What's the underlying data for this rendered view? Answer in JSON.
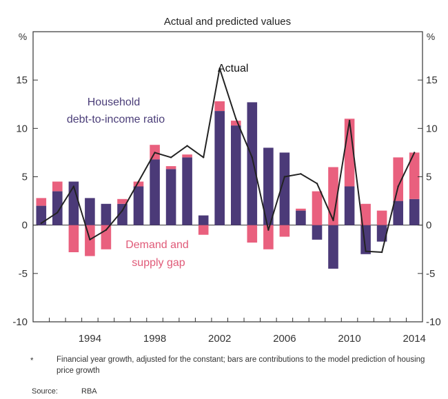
{
  "chart_data": {
    "type": "bar",
    "title": "Actual and predicted values",
    "unit_left": "%",
    "unit_right": "%",
    "ylim": [
      -10,
      20
    ],
    "yticks": [
      -10,
      -5,
      0,
      5,
      10,
      15
    ],
    "xlim": [
      1991,
      2014
    ],
    "xticks": [
      1994,
      1998,
      2002,
      2006,
      2010,
      2014
    ],
    "years": [
      1991,
      1992,
      1993,
      1994,
      1995,
      1996,
      1997,
      1998,
      1999,
      2000,
      2001,
      2002,
      2003,
      2004,
      2005,
      2006,
      2007,
      2008,
      2009,
      2010,
      2011,
      2012,
      2013,
      2014
    ],
    "stacked": true,
    "grid": false,
    "series": [
      {
        "name": "Household debt-to-income ratio",
        "color": "#4b3a78",
        "values": [
          2.0,
          3.5,
          4.5,
          2.8,
          2.2,
          2.2,
          4.0,
          6.8,
          5.8,
          7.0,
          1.0,
          11.8,
          10.3,
          12.7,
          8.0,
          7.5,
          1.5,
          -1.5,
          -4.5,
          4.0,
          -3.0,
          -1.7,
          2.5,
          2.7
        ]
      },
      {
        "name": "Demand and supply gap",
        "color": "#e9607e",
        "values": [
          0.8,
          1.0,
          -2.8,
          -3.2,
          -2.5,
          0.5,
          0.5,
          1.5,
          0.3,
          0.3,
          -1.0,
          1.0,
          0.5,
          -1.8,
          -2.5,
          -1.2,
          0.2,
          3.5,
          6.0,
          7.0,
          2.2,
          1.5,
          4.5,
          4.8
        ]
      }
    ],
    "actual": {
      "name": "Actual",
      "color": "#222222",
      "values": [
        0.2,
        1.3,
        4.0,
        -1.5,
        -0.5,
        1.5,
        4.5,
        7.5,
        7.0,
        8.2,
        7.0,
        16.2,
        11.0,
        7.0,
        -0.5,
        5.0,
        5.3,
        4.3,
        0.5,
        10.8,
        -2.7,
        -2.8,
        4.0,
        7.5
      ]
    },
    "annotations": {
      "actual": "Actual",
      "household_line1": "Household",
      "household_line2": "debt-to-income ratio",
      "gap_line1": "Demand and",
      "gap_line2": "supply gap"
    }
  },
  "footnote": {
    "marker": "*",
    "text": "Financial year growth, adjusted for the constant; bars are contributions to the model prediction of housing price growth"
  },
  "source": {
    "label": "Source:",
    "value": "RBA"
  }
}
